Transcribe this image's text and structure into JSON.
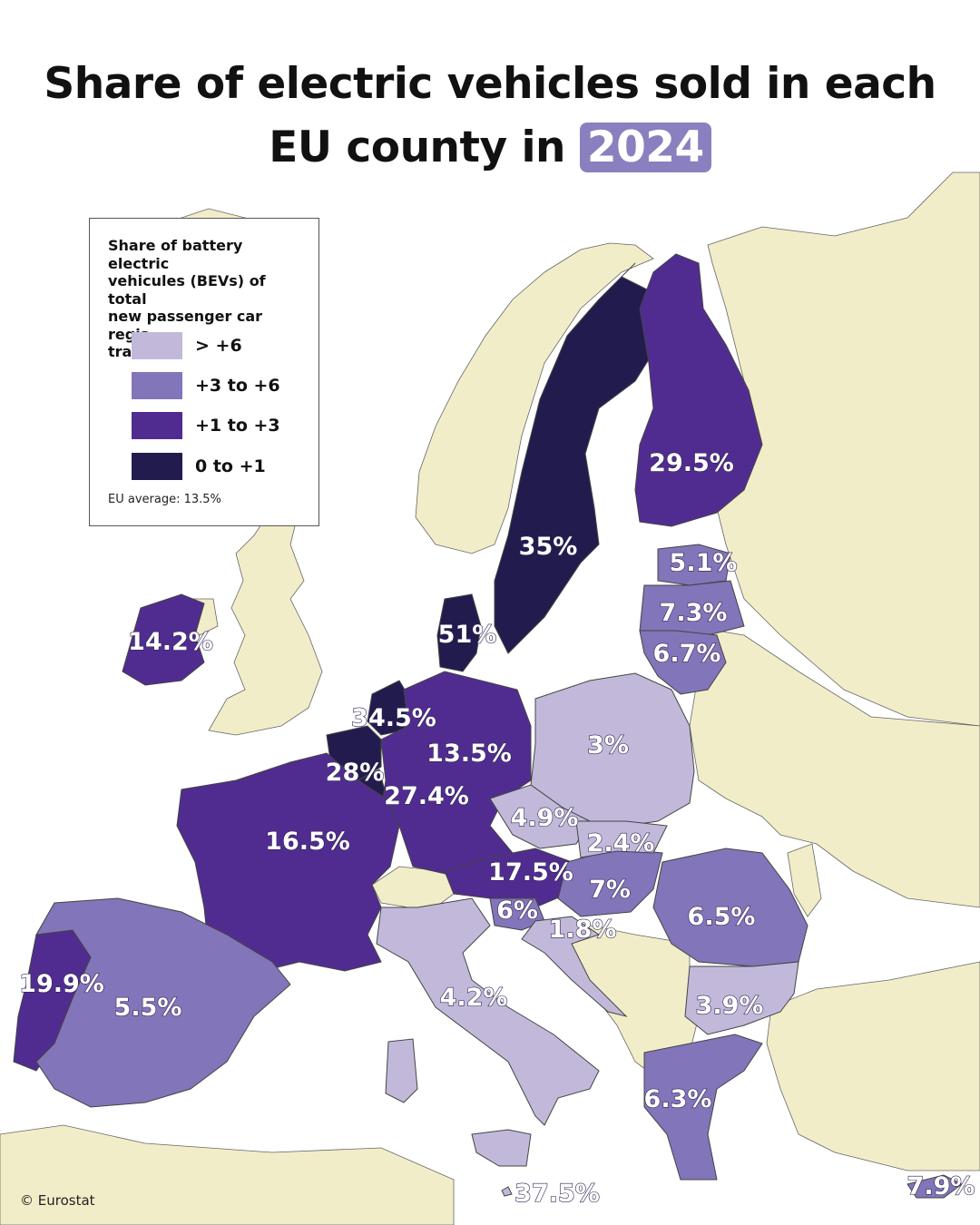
{
  "title": {
    "line1": "Share of electric vehicles sold in each",
    "line2_prefix": "EU county in ",
    "year": "2024"
  },
  "legend": {
    "title": "Share of battery electric\nvehicules (BEVs) of total\nnew passenger car regis-\ntrations",
    "classes": [
      {
        "label": "> +6",
        "color": "#c2b9da"
      },
      {
        "label": "+3 to +6",
        "color": "#8275b9"
      },
      {
        "label": "+1 to +3",
        "color": "#512c90"
      },
      {
        "label": "0 to +1",
        "color": "#221c4e"
      }
    ],
    "note": "EU average: 13.5%"
  },
  "colors": {
    "non_eu_land": "#f2edc9",
    "sea": "#ffffff",
    "border": "#555555"
  },
  "map_labels": [
    {
      "id": "finland",
      "value": "29.5%"
    },
    {
      "id": "sweden",
      "value": "35%"
    },
    {
      "id": "estonia",
      "value": "5.1%"
    },
    {
      "id": "latvia",
      "value": "7.3%"
    },
    {
      "id": "lithuania",
      "value": "6.7%"
    },
    {
      "id": "ireland",
      "value": "14.2%"
    },
    {
      "id": "denmark",
      "value": "51%"
    },
    {
      "id": "netherlands",
      "value": "34.5%"
    },
    {
      "id": "germany",
      "value": "13.5%"
    },
    {
      "id": "poland",
      "value": "3%"
    },
    {
      "id": "belgium",
      "value": "28%"
    },
    {
      "id": "luxembourg",
      "value": "27.4%"
    },
    {
      "id": "france",
      "value": "16.5%"
    },
    {
      "id": "czechia",
      "value": "4.9%"
    },
    {
      "id": "slovakia",
      "value": "2.4%"
    },
    {
      "id": "austria",
      "value": "17.5%"
    },
    {
      "id": "hungary",
      "value": "7%"
    },
    {
      "id": "slovenia",
      "value": "6%"
    },
    {
      "id": "croatia",
      "value": "1.8%"
    },
    {
      "id": "romania",
      "value": "6.5%"
    },
    {
      "id": "portugal",
      "value": "19.9%"
    },
    {
      "id": "spain",
      "value": "5.5%"
    },
    {
      "id": "italy",
      "value": "4.2%"
    },
    {
      "id": "bulgaria",
      "value": "3.9%"
    },
    {
      "id": "greece",
      "value": "6.3%"
    },
    {
      "id": "malta",
      "value": "37.5%"
    },
    {
      "id": "cyprus",
      "value": "7.9%"
    }
  ],
  "source": "© Eurostat"
}
